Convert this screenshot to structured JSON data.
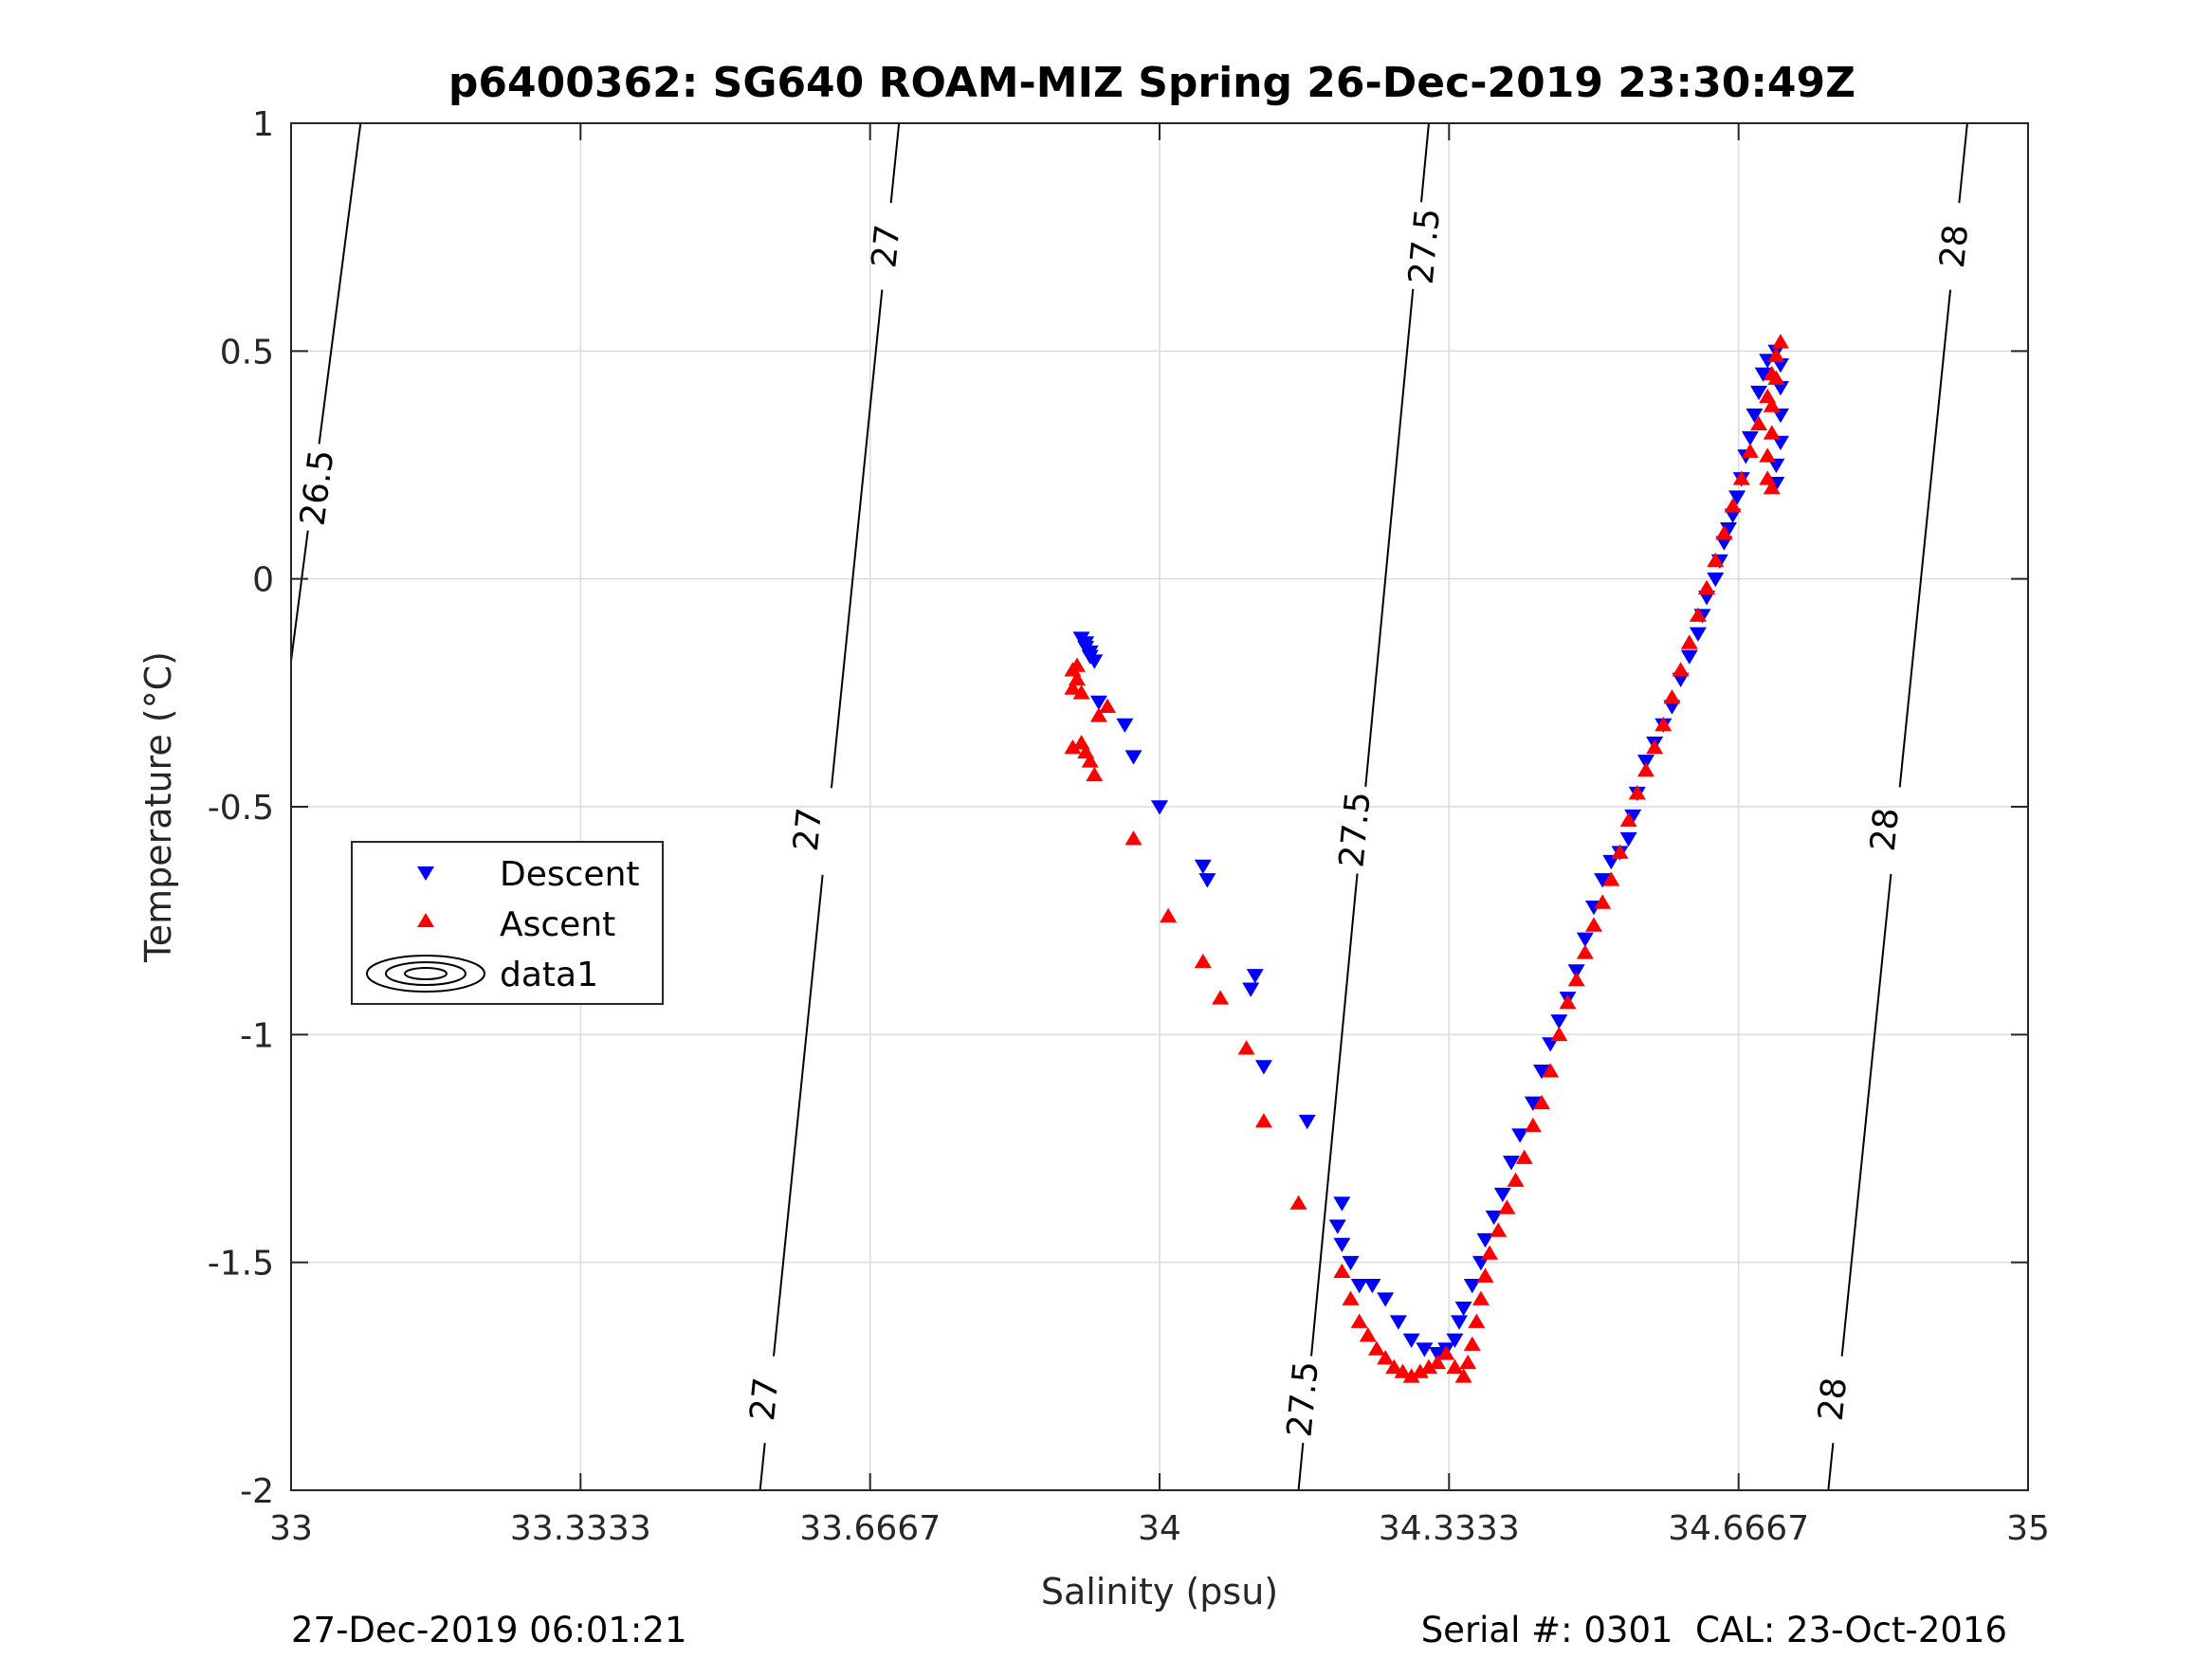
{
  "figure": {
    "title": "p6400362: SG640 ROAM-MIZ Spring 26-Dec-2019 23:30:49Z",
    "footer_left": "27-Dec-2019 06:01:21",
    "footer_right": "Serial #: 0301  CAL: 23-Oct-2016"
  },
  "colors": {
    "descent": "#0000ff",
    "ascent": "#ff0000",
    "contour": "#000000",
    "grid": "#dcdcdc"
  },
  "chart_data": {
    "type": "scatter",
    "title": "p6400362: SG640 ROAM-MIZ Spring 26-Dec-2019 23:30:49Z",
    "xlabel": "Salinity (psu)",
    "ylabel": "Temperature (°C)",
    "xlim": [
      33,
      35
    ],
    "ylim": [
      -2,
      1
    ],
    "xticks": [
      33,
      33.3333,
      33.6667,
      34,
      34.3333,
      34.6667,
      35
    ],
    "xtick_labels": [
      "33",
      "33.3333",
      "33.6667",
      "34",
      "34.3333",
      "34.6667",
      "35"
    ],
    "yticks": [
      -2,
      -1.5,
      -1,
      -0.5,
      0,
      0.5,
      1
    ],
    "ytick_labels": [
      "-2",
      "-1.5",
      "-1",
      "-0.5",
      "0",
      "0.5",
      "1"
    ],
    "grid": true,
    "legend_position": "left",
    "legend": [
      "Descent",
      "Ascent",
      "data1"
    ],
    "series": [
      {
        "name": "Descent",
        "marker": "triangle-down",
        "color": "#0000ff",
        "points": [
          [
            33.91,
            -0.13
          ],
          [
            33.915,
            -0.14
          ],
          [
            33.92,
            -0.16
          ],
          [
            33.925,
            -0.18
          ],
          [
            33.915,
            -0.15
          ],
          [
            33.92,
            -0.17
          ],
          [
            33.93,
            -0.27
          ],
          [
            33.96,
            -0.32
          ],
          [
            33.97,
            -0.39
          ],
          [
            34.0,
            -0.5
          ],
          [
            34.05,
            -0.63
          ],
          [
            34.055,
            -0.66
          ],
          [
            34.11,
            -0.87
          ],
          [
            34.105,
            -0.9
          ],
          [
            34.12,
            -1.07
          ],
          [
            34.17,
            -1.19
          ],
          [
            34.21,
            -1.37
          ],
          [
            34.205,
            -1.42
          ],
          [
            34.21,
            -1.46
          ],
          [
            34.22,
            -1.5
          ],
          [
            34.23,
            -1.55
          ],
          [
            34.245,
            -1.55
          ],
          [
            34.26,
            -1.58
          ],
          [
            34.275,
            -1.63
          ],
          [
            34.29,
            -1.67
          ],
          [
            34.305,
            -1.69
          ],
          [
            34.32,
            -1.7
          ],
          [
            34.33,
            -1.69
          ],
          [
            34.34,
            -1.67
          ],
          [
            34.345,
            -1.63
          ],
          [
            34.35,
            -1.6
          ],
          [
            34.36,
            -1.55
          ],
          [
            34.37,
            -1.5
          ],
          [
            34.375,
            -1.45
          ],
          [
            34.385,
            -1.4
          ],
          [
            34.395,
            -1.35
          ],
          [
            34.405,
            -1.28
          ],
          [
            34.415,
            -1.22
          ],
          [
            34.43,
            -1.15
          ],
          [
            34.44,
            -1.08
          ],
          [
            34.45,
            -1.02
          ],
          [
            34.46,
            -0.97
          ],
          [
            34.47,
            -0.92
          ],
          [
            34.48,
            -0.86
          ],
          [
            34.49,
            -0.79
          ],
          [
            34.5,
            -0.72
          ],
          [
            34.51,
            -0.66
          ],
          [
            34.52,
            -0.62
          ],
          [
            34.53,
            -0.6
          ],
          [
            34.54,
            -0.57
          ],
          [
            34.545,
            -0.52
          ],
          [
            34.55,
            -0.47
          ],
          [
            34.56,
            -0.4
          ],
          [
            34.57,
            -0.36
          ],
          [
            34.58,
            -0.32
          ],
          [
            34.59,
            -0.28
          ],
          [
            34.6,
            -0.22
          ],
          [
            34.61,
            -0.17
          ],
          [
            34.62,
            -0.12
          ],
          [
            34.625,
            -0.08
          ],
          [
            34.63,
            -0.04
          ],
          [
            34.64,
            0.0
          ],
          [
            34.645,
            0.04
          ],
          [
            34.65,
            0.08
          ],
          [
            34.655,
            0.11
          ],
          [
            34.66,
            0.14
          ],
          [
            34.665,
            0.18
          ],
          [
            34.67,
            0.22
          ],
          [
            34.675,
            0.27
          ],
          [
            34.68,
            0.31
          ],
          [
            34.685,
            0.36
          ],
          [
            34.69,
            0.41
          ],
          [
            34.695,
            0.45
          ],
          [
            34.7,
            0.48
          ],
          [
            34.71,
            0.5
          ],
          [
            34.715,
            0.47
          ],
          [
            34.715,
            0.42
          ],
          [
            34.715,
            0.36
          ],
          [
            34.715,
            0.3
          ],
          [
            34.71,
            0.25
          ],
          [
            34.71,
            0.21
          ]
        ]
      },
      {
        "name": "Ascent",
        "marker": "triangle-up",
        "color": "#ff0000",
        "points": [
          [
            33.9,
            -0.2
          ],
          [
            33.905,
            -0.22
          ],
          [
            33.9,
            -0.24
          ],
          [
            33.91,
            -0.25
          ],
          [
            33.905,
            -0.19
          ],
          [
            33.9,
            -0.37
          ],
          [
            33.91,
            -0.36
          ],
          [
            33.915,
            -0.38
          ],
          [
            33.92,
            -0.4
          ],
          [
            33.925,
            -0.43
          ],
          [
            33.93,
            -0.3
          ],
          [
            33.94,
            -0.28
          ],
          [
            33.97,
            -0.57
          ],
          [
            34.01,
            -0.74
          ],
          [
            34.05,
            -0.84
          ],
          [
            34.07,
            -0.92
          ],
          [
            34.1,
            -1.03
          ],
          [
            34.12,
            -1.19
          ],
          [
            34.16,
            -1.37
          ],
          [
            34.21,
            -1.52
          ],
          [
            34.22,
            -1.58
          ],
          [
            34.23,
            -1.63
          ],
          [
            34.24,
            -1.66
          ],
          [
            34.25,
            -1.69
          ],
          [
            34.26,
            -1.71
          ],
          [
            34.27,
            -1.73
          ],
          [
            34.28,
            -1.74
          ],
          [
            34.29,
            -1.75
          ],
          [
            34.3,
            -1.74
          ],
          [
            34.31,
            -1.73
          ],
          [
            34.32,
            -1.72
          ],
          [
            34.33,
            -1.7
          ],
          [
            34.34,
            -1.73
          ],
          [
            34.35,
            -1.75
          ],
          [
            34.355,
            -1.72
          ],
          [
            34.36,
            -1.68
          ],
          [
            34.365,
            -1.63
          ],
          [
            34.37,
            -1.58
          ],
          [
            34.375,
            -1.53
          ],
          [
            34.38,
            -1.48
          ],
          [
            34.39,
            -1.43
          ],
          [
            34.4,
            -1.38
          ],
          [
            34.41,
            -1.32
          ],
          [
            34.42,
            -1.27
          ],
          [
            34.43,
            -1.2
          ],
          [
            34.44,
            -1.15
          ],
          [
            34.45,
            -1.08
          ],
          [
            34.46,
            -1.0
          ],
          [
            34.47,
            -0.93
          ],
          [
            34.48,
            -0.88
          ],
          [
            34.49,
            -0.82
          ],
          [
            34.5,
            -0.76
          ],
          [
            34.51,
            -0.71
          ],
          [
            34.52,
            -0.66
          ],
          [
            34.53,
            -0.6
          ],
          [
            34.54,
            -0.53
          ],
          [
            34.55,
            -0.47
          ],
          [
            34.56,
            -0.42
          ],
          [
            34.57,
            -0.37
          ],
          [
            34.58,
            -0.32
          ],
          [
            34.59,
            -0.26
          ],
          [
            34.6,
            -0.2
          ],
          [
            34.61,
            -0.14
          ],
          [
            34.62,
            -0.08
          ],
          [
            34.63,
            -0.02
          ],
          [
            34.64,
            0.04
          ],
          [
            34.65,
            0.1
          ],
          [
            34.66,
            0.16
          ],
          [
            34.67,
            0.22
          ],
          [
            34.68,
            0.28
          ],
          [
            34.69,
            0.34
          ],
          [
            34.7,
            0.4
          ],
          [
            34.705,
            0.45
          ],
          [
            34.71,
            0.49
          ],
          [
            34.715,
            0.52
          ],
          [
            34.71,
            0.44
          ],
          [
            34.705,
            0.38
          ],
          [
            34.705,
            0.32
          ],
          [
            34.7,
            0.27
          ],
          [
            34.7,
            0.22
          ],
          [
            34.705,
            0.2
          ]
        ]
      }
    ],
    "density_contours": {
      "levels": [
        26.5,
        27,
        27.5,
        28
      ],
      "lines": [
        {
          "level": 26.5,
          "points": [
            [
              33.0,
              -0.18
            ],
            [
              33.08,
              1.0
            ]
          ],
          "labels": [
            [
              33.03,
              0.2
            ]
          ]
        },
        {
          "level": 27,
          "points": [
            [
              33.54,
              -2.0
            ],
            [
              33.7,
              1.0
            ]
          ],
          "labels": [
            [
              33.545,
              -1.8
            ],
            [
              33.595,
              -0.55
            ],
            [
              33.685,
              0.73
            ]
          ]
        },
        {
          "level": 27.5,
          "points": [
            [
              34.16,
              -2.0
            ],
            [
              34.31,
              1.0
            ]
          ],
          "labels": [
            [
              34.165,
              -1.8
            ],
            [
              34.225,
              -0.55
            ],
            [
              34.305,
              0.73
            ]
          ]
        },
        {
          "level": 28,
          "points": [
            [
              34.77,
              -2.0
            ],
            [
              34.93,
              1.0
            ]
          ],
          "labels": [
            [
              34.775,
              -1.8
            ],
            [
              34.835,
              -0.55
            ],
            [
              34.915,
              0.73
            ]
          ]
        }
      ]
    }
  }
}
